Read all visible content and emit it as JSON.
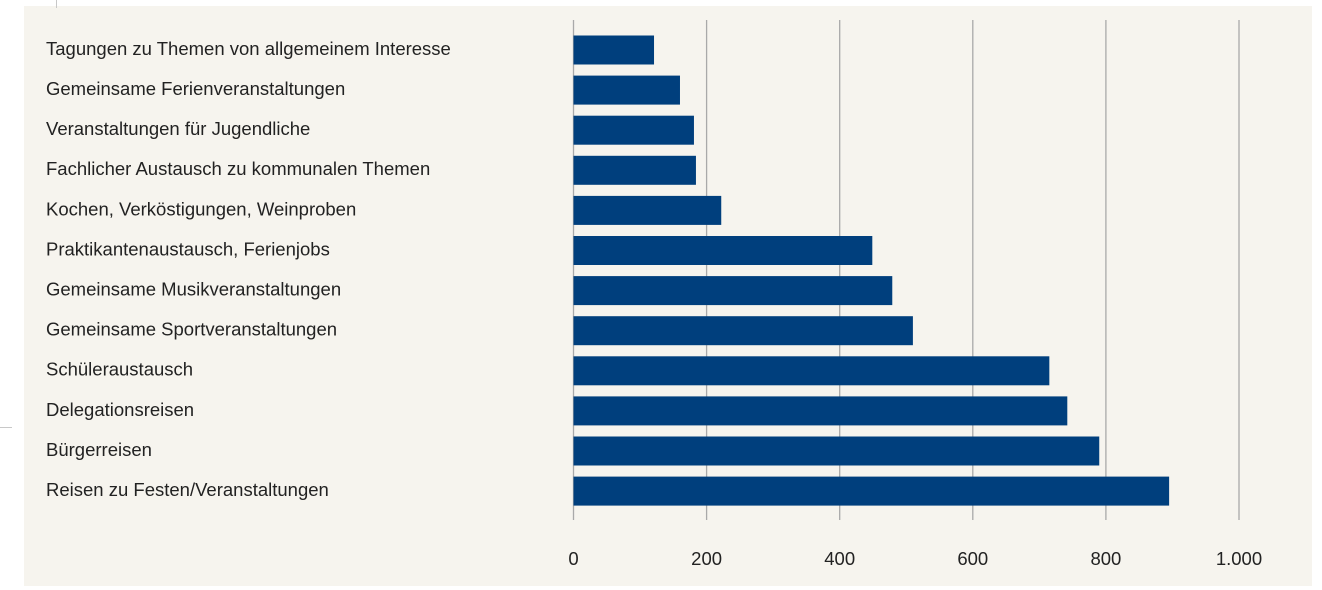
{
  "colors": {
    "bar": "#003f7d",
    "background": "#f6f4ee",
    "grid": "#a9a9a9",
    "text": "#222222"
  },
  "chart_data": {
    "type": "bar",
    "orientation": "horizontal",
    "categories": [
      "Tagungen zu Themen von allgemeinem Interesse",
      "Gemeinsame Ferienveranstaltungen",
      "Veranstaltungen für Jugendliche",
      "Fachlicher Austausch zu kommunalen Themen",
      "Kochen, Verköstigungen, Weinproben",
      "Praktikantenaustausch, Ferienjobs",
      "Gemeinsame Musikveranstaltungen",
      "Gemeinsame Sportveranstaltungen",
      "Schüleraustausch",
      "Delegationsreisen",
      "Bürgerreisen",
      "Reisen zu Festen/Veranstaltungen"
    ],
    "values": [
      121,
      160,
      181,
      184,
      222,
      449,
      479,
      510,
      715,
      742,
      790,
      895
    ],
    "xlim": [
      0,
      1000
    ],
    "x_ticks": [
      0,
      200,
      400,
      600,
      800,
      1000
    ],
    "x_tick_labels": [
      "0",
      "200",
      "400",
      "600",
      "800",
      "1.000"
    ],
    "grid": "vertical",
    "legend": "none"
  }
}
